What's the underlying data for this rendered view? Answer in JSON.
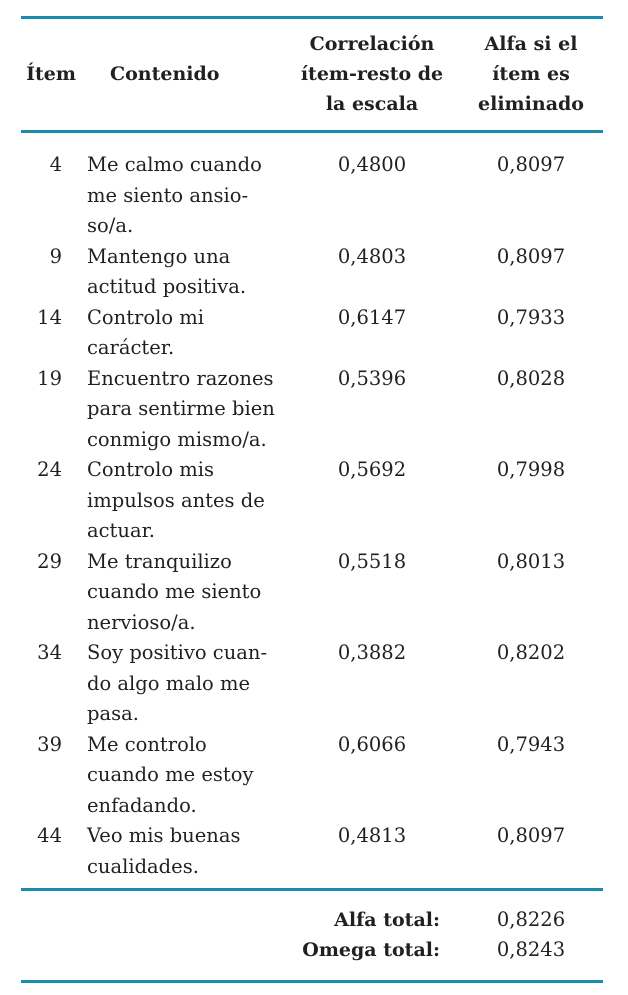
{
  "header": {
    "item": "Ítem",
    "contenido": "Contenido",
    "correlacion_lines": [
      "Correlación",
      "ítem-resto de",
      "la escala"
    ],
    "alfa_lines": [
      "Alfa si el",
      "ítem es",
      "eliminado"
    ]
  },
  "rows": [
    {
      "item": "4",
      "content_lines": [
        "Me calmo cuando",
        "me siento ansio-",
        "so/a."
      ],
      "correlacion": "0,4800",
      "alfa": "0,8097"
    },
    {
      "item": "9",
      "content_lines": [
        "Mantengo una",
        "actitud positiva."
      ],
      "correlacion": "0,4803",
      "alfa": "0,8097"
    },
    {
      "item": "14",
      "content_lines": [
        "Controlo mi",
        "carácter."
      ],
      "correlacion": "0,6147",
      "alfa": "0,7933"
    },
    {
      "item": "19",
      "content_lines": [
        "Encuentro razones",
        "para sentirme bien",
        "conmigo mismo/a."
      ],
      "correlacion": "0,5396",
      "alfa": "0,8028"
    },
    {
      "item": "24",
      "content_lines": [
        "Controlo mis",
        "impulsos antes de",
        "actuar."
      ],
      "correlacion": "0,5692",
      "alfa": "0,7998"
    },
    {
      "item": "29",
      "content_lines": [
        "Me tranquilizo",
        "cuando me siento",
        "nervioso/a."
      ],
      "correlacion": "0,5518",
      "alfa": "0,8013"
    },
    {
      "item": "34",
      "content_lines": [
        "Soy positivo cuan-",
        "do algo malo me",
        "pasa."
      ],
      "correlacion": "0,3882",
      "alfa": "0,8202"
    },
    {
      "item": "39",
      "content_lines": [
        "Me controlo",
        "cuando me estoy",
        "enfadando."
      ],
      "correlacion": "0,6066",
      "alfa": "0,7943"
    },
    {
      "item": "44",
      "content_lines": [
        "Veo mis buenas",
        "cualidades."
      ],
      "correlacion": "0,4813",
      "alfa": "0,8097"
    }
  ],
  "totals": {
    "alfa_label": "Alfa total:",
    "alfa_value": "0,8226",
    "omega_label": "Omega total:",
    "omega_value": "0,8243"
  }
}
